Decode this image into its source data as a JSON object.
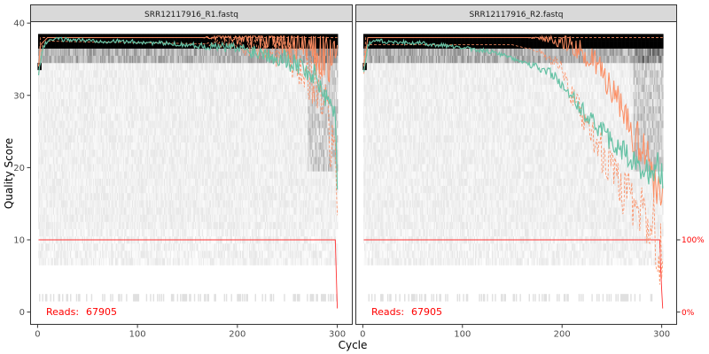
{
  "chart_data": {
    "type": "line",
    "xlabel": "Cycle",
    "ylabel": "Quality Score",
    "xlim": [
      -7,
      315
    ],
    "ylim": [
      -1.7,
      40.2
    ],
    "x_ticks": [
      0,
      100,
      200,
      300
    ],
    "y_ticks": [
      0,
      10,
      20,
      30,
      40
    ],
    "right_axis_labels": [
      "100%",
      "0%"
    ],
    "colors": {
      "mean": "#66c2a5",
      "quantiles": "#fc8d62",
      "cumulative": "#ff3333",
      "reads": "#ff0000",
      "panel_border": "#333333",
      "strip_fill": "#d9d9d9"
    },
    "panels": [
      {
        "title": "SRR12117916_R1.fastq",
        "reads_label": "Reads:",
        "reads_value": "67905",
        "max_cycle": 300,
        "mean": [
          [
            1,
            33
          ],
          [
            3,
            34.5
          ],
          [
            5,
            36.5
          ],
          [
            10,
            37.6
          ],
          [
            20,
            37.8
          ],
          [
            50,
            37.6
          ],
          [
            100,
            37.4
          ],
          [
            150,
            37.0
          ],
          [
            200,
            36.5
          ],
          [
            230,
            35.8
          ],
          [
            250,
            35.0
          ],
          [
            260,
            34.3
          ],
          [
            270,
            33.5
          ],
          [
            280,
            32.2
          ],
          [
            285,
            31.0
          ],
          [
            290,
            29.5
          ],
          [
            295,
            28.5
          ],
          [
            298,
            27.0
          ],
          [
            300,
            18
          ]
        ],
        "median": [
          [
            1,
            34
          ],
          [
            3,
            37
          ],
          [
            10,
            38
          ],
          [
            240,
            38
          ],
          [
            250,
            37.5
          ],
          [
            260,
            37
          ],
          [
            270,
            36.5
          ],
          [
            280,
            36
          ],
          [
            290,
            35
          ],
          [
            300,
            34
          ]
        ],
        "q25": [
          [
            1,
            33
          ],
          [
            5,
            37
          ],
          [
            10,
            37.5
          ],
          [
            230,
            37
          ],
          [
            250,
            36
          ],
          [
            260,
            35
          ],
          [
            270,
            33
          ],
          [
            280,
            32
          ],
          [
            290,
            28
          ],
          [
            300,
            17
          ]
        ],
        "q75": [
          [
            1,
            34
          ],
          [
            3,
            38
          ],
          [
            300,
            38
          ]
        ],
        "cumulative_pct": [
          [
            1,
            100
          ],
          [
            298,
            100
          ],
          [
            300,
            5
          ]
        ]
      },
      {
        "title": "SRR12117916_R2.fastq",
        "reads_label": "Reads:",
        "reads_value": "67905",
        "max_cycle": 301,
        "mean": [
          [
            1,
            33
          ],
          [
            3,
            35
          ],
          [
            5,
            37
          ],
          [
            10,
            37.6
          ],
          [
            30,
            37.4
          ],
          [
            60,
            37.2
          ],
          [
            100,
            36.6
          ],
          [
            130,
            36.0
          ],
          [
            150,
            35.2
          ],
          [
            170,
            34.2
          ],
          [
            190,
            33.0
          ],
          [
            200,
            31.5
          ],
          [
            210,
            29.8
          ],
          [
            220,
            28.0
          ],
          [
            230,
            26.5
          ],
          [
            240,
            25.0
          ],
          [
            250,
            23.5
          ],
          [
            260,
            22.5
          ],
          [
            270,
            21.0
          ],
          [
            280,
            19.8
          ],
          [
            290,
            19.0
          ],
          [
            295,
            21.0
          ],
          [
            301,
            18.5
          ]
        ],
        "median": [
          [
            1,
            34
          ],
          [
            5,
            38
          ],
          [
            180,
            38
          ],
          [
            200,
            37.5
          ],
          [
            210,
            37
          ],
          [
            220,
            36
          ],
          [
            230,
            35
          ],
          [
            240,
            33.5
          ],
          [
            250,
            30
          ],
          [
            260,
            28
          ],
          [
            270,
            25
          ],
          [
            280,
            22
          ],
          [
            290,
            20
          ],
          [
            301,
            16
          ]
        ],
        "q25": [
          [
            1,
            33
          ],
          [
            5,
            37
          ],
          [
            150,
            37
          ],
          [
            180,
            36
          ],
          [
            200,
            34
          ],
          [
            210,
            30
          ],
          [
            220,
            27
          ],
          [
            230,
            25
          ],
          [
            240,
            22
          ],
          [
            250,
            20
          ],
          [
            260,
            17
          ],
          [
            270,
            15
          ],
          [
            280,
            14
          ],
          [
            290,
            13
          ],
          [
            301,
            7
          ]
        ],
        "q75": [
          [
            1,
            34
          ],
          [
            3,
            38
          ],
          [
            301,
            38
          ]
        ],
        "cumulative_pct": [
          [
            1,
            100
          ],
          [
            298,
            100
          ],
          [
            299,
            60
          ],
          [
            300,
            30
          ],
          [
            301,
            5
          ]
        ]
      }
    ]
  }
}
